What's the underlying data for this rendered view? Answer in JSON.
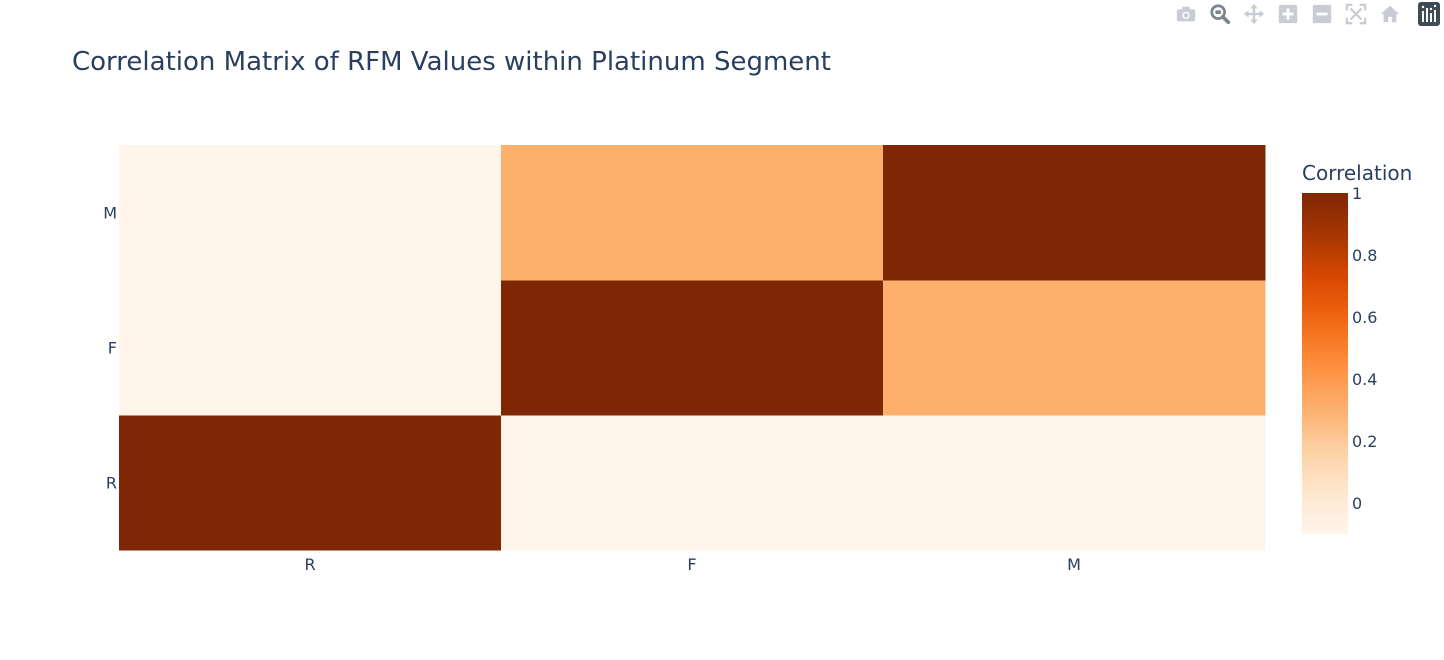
{
  "modebar": {
    "buttons": [
      {
        "name": "camera-icon",
        "title": "Download plot as a png"
      },
      {
        "name": "zoom-icon",
        "title": "Zoom"
      },
      {
        "name": "pan-icon",
        "title": "Pan"
      },
      {
        "name": "zoom-in-icon",
        "title": "Zoom in"
      },
      {
        "name": "zoom-out-icon",
        "title": "Zoom out"
      },
      {
        "name": "autoscale-icon",
        "title": "Autoscale"
      },
      {
        "name": "home-icon",
        "title": "Reset axes"
      }
    ],
    "logo": "plotly-logo-icon",
    "icon_color": "#c9cdd3",
    "active_icon_color": "#7a8591"
  },
  "chart_data": {
    "type": "heatmap",
    "title": "Correlation Matrix of RFM Values within Platinum Segment",
    "x": [
      "R",
      "F",
      "M"
    ],
    "y": [
      "R",
      "F",
      "M"
    ],
    "z": [
      [
        1,
        -0.1,
        -0.1
      ],
      [
        -0.1,
        1,
        0.31
      ],
      [
        -0.1,
        0.31,
        1
      ]
    ],
    "zmin": -0.1,
    "zmax": 1,
    "colorscale": "Oranges",
    "colorbar": {
      "title": "Correlation",
      "ticks": [
        0,
        0.2,
        0.4,
        0.6,
        0.8,
        1
      ],
      "tick_labels": [
        "0",
        "0.2",
        "0.4",
        "0.6",
        "0.8",
        "1"
      ]
    },
    "xlabel": "",
    "ylabel": ""
  }
}
